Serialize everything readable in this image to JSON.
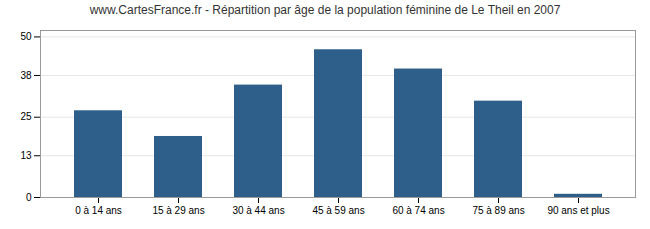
{
  "chart_data": {
    "type": "bar",
    "title": "www.CartesFrance.fr - Répartition par âge de la population féminine de Le Theil en 2007",
    "categories": [
      "0 à 14 ans",
      "15 à 29 ans",
      "30 à 44 ans",
      "45 à 59 ans",
      "60 à 74 ans",
      "75 à 89 ans",
      "90 ans et plus"
    ],
    "values": [
      27,
      19,
      35,
      46,
      40,
      30,
      1
    ],
    "color": "#2E5F8A",
    "ylim": [
      0,
      52
    ],
    "yticks": [
      0,
      13,
      25,
      38,
      50
    ],
    "grid": true
  }
}
